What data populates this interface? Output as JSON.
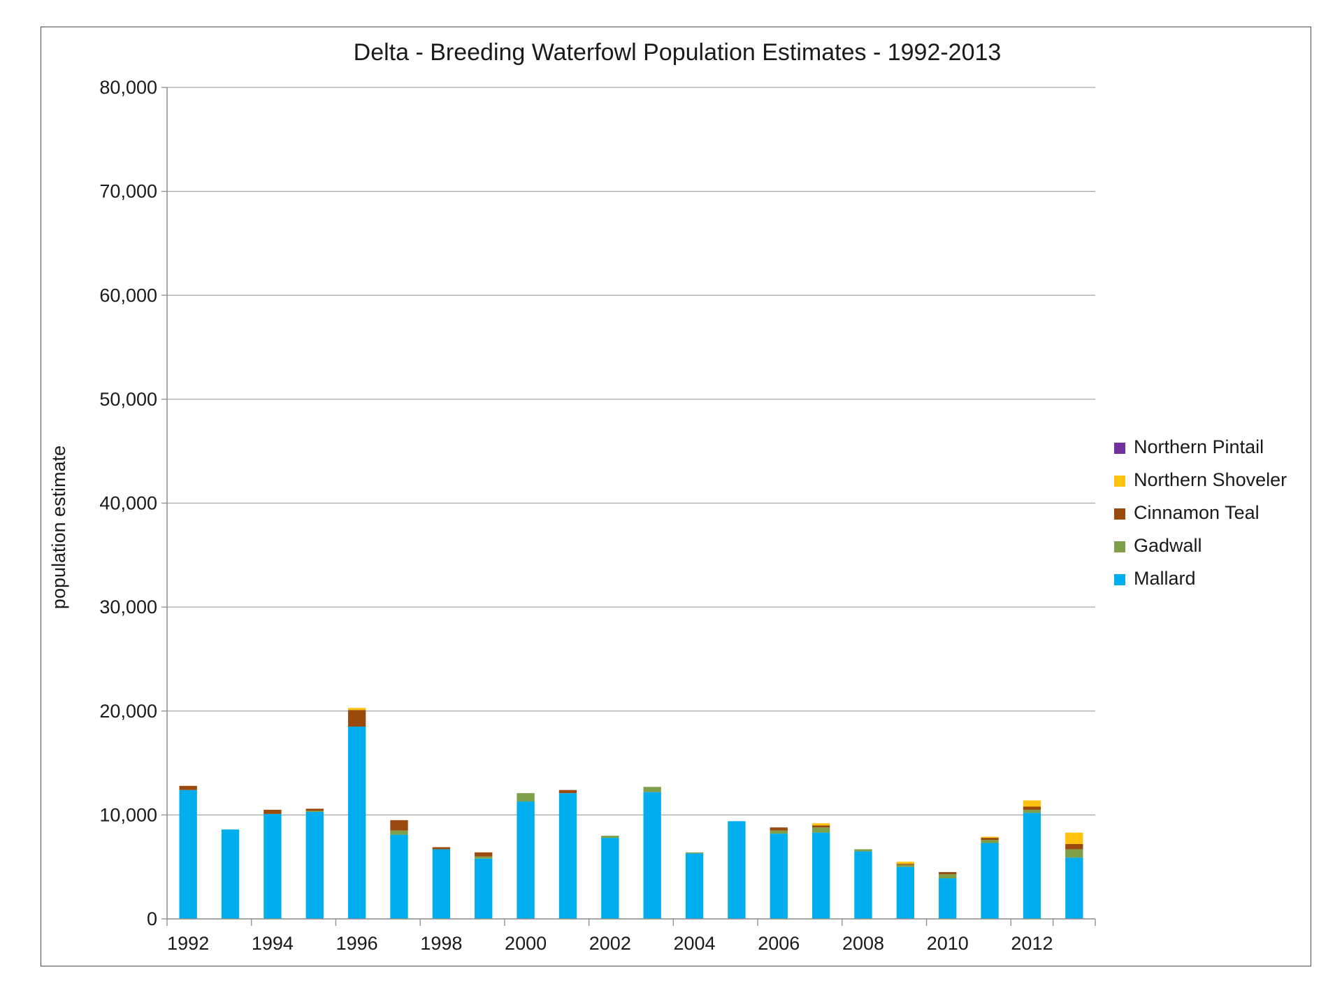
{
  "chart_data": {
    "type": "bar",
    "stacked": true,
    "title": "Delta - Breeding Waterfowl Population Estimates - 1992-2013",
    "xlabel": "",
    "ylabel": "population estimate",
    "ylim": [
      0,
      80000
    ],
    "yticks": [
      0,
      10000,
      20000,
      30000,
      40000,
      50000,
      60000,
      70000,
      80000
    ],
    "ytick_labels": [
      "0",
      "10,000",
      "20,000",
      "30,000",
      "40,000",
      "50,000",
      "60,000",
      "70,000",
      "80,000"
    ],
    "categories": [
      "1992",
      "1993",
      "1994",
      "1995",
      "1996",
      "1997",
      "1998",
      "1999",
      "2000",
      "2001",
      "2002",
      "2003",
      "2004",
      "2005",
      "2006",
      "2007",
      "2008",
      "2009",
      "2010",
      "2011",
      "2012",
      "2013"
    ],
    "xtick_labels": [
      "1992",
      "",
      "1994",
      "",
      "1996",
      "",
      "1998",
      "",
      "2000",
      "",
      "2002",
      "",
      "2004",
      "",
      "2006",
      "",
      "2008",
      "",
      "2010",
      "",
      "2012",
      ""
    ],
    "grid": "horizontal",
    "legend_position": "right",
    "series": [
      {
        "name": "Mallard",
        "color": "#00aeef",
        "values": [
          12400,
          8600,
          10100,
          10300,
          18500,
          8100,
          6700,
          5800,
          11300,
          12100,
          7800,
          12200,
          6300,
          9400,
          8200,
          8300,
          6500,
          5000,
          3900,
          7300,
          10200,
          5900
        ]
      },
      {
        "name": "Gadwall",
        "color": "#7f9f4b",
        "values": [
          0,
          0,
          0,
          100,
          0,
          400,
          0,
          200,
          800,
          0,
          200,
          500,
          100,
          0,
          300,
          500,
          200,
          200,
          400,
          300,
          300,
          800
        ]
      },
      {
        "name": "Cinnamon Teal",
        "color": "#9a4a0c",
        "values": [
          400,
          0,
          400,
          200,
          1600,
          1000,
          200,
          400,
          0,
          300,
          0,
          0,
          0,
          0,
          300,
          200,
          0,
          100,
          200,
          200,
          300,
          500
        ]
      },
      {
        "name": "Northern Shoveler",
        "color": "#ffc20e",
        "values": [
          0,
          0,
          0,
          0,
          200,
          0,
          0,
          0,
          0,
          0,
          0,
          0,
          0,
          0,
          0,
          200,
          0,
          200,
          0,
          100,
          600,
          1100
        ]
      },
      {
        "name": "Northern Pintail",
        "color": "#7030a0",
        "values": [
          0,
          0,
          0,
          0,
          0,
          0,
          0,
          0,
          0,
          0,
          0,
          0,
          0,
          0,
          0,
          0,
          0,
          0,
          0,
          0,
          0,
          0
        ]
      }
    ]
  }
}
